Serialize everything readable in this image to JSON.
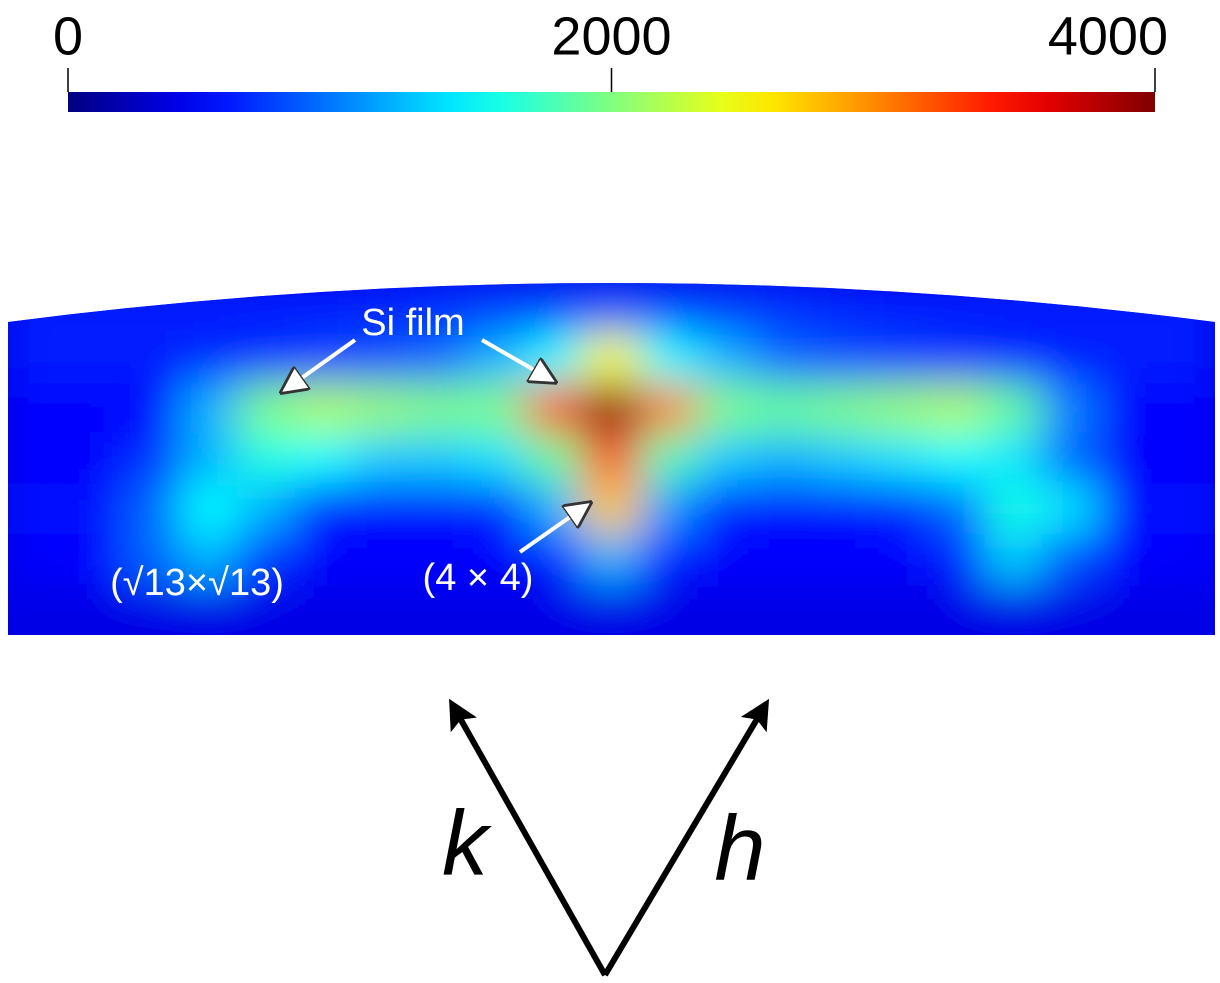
{
  "chart_data": {
    "type": "heatmap",
    "colorbar": {
      "lim": [
        0,
        4000
      ],
      "ticks": [
        0,
        2000,
        4000
      ]
    },
    "z": [
      [
        600,
        600,
        600,
        600,
        600,
        600,
        650,
        700,
        750,
        800,
        850,
        800,
        750,
        700,
        650,
        600,
        600,
        600,
        600,
        600,
        600
      ],
      [
        600,
        600,
        600,
        650,
        700,
        750,
        800,
        900,
        1200,
        1500,
        2500,
        1500,
        1200,
        900,
        800,
        750,
        700,
        650,
        600,
        600,
        600
      ],
      [
        500,
        500,
        500,
        1200,
        2000,
        2200,
        2100,
        2000,
        2000,
        3200,
        4000,
        3000,
        2000,
        1900,
        2000,
        2100,
        2200,
        1900,
        1000,
        500,
        500
      ],
      [
        500,
        500,
        700,
        1200,
        1600,
        1500,
        1300,
        1300,
        1400,
        1900,
        3200,
        1800,
        1300,
        1200,
        1300,
        1400,
        1500,
        1400,
        900,
        500,
        500
      ],
      [
        550,
        550,
        900,
        1500,
        1200,
        600,
        550,
        550,
        600,
        1200,
        2700,
        1100,
        600,
        550,
        550,
        600,
        900,
        1600,
        1400,
        550,
        550
      ],
      [
        500,
        500,
        900,
        1200,
        700,
        500,
        500,
        500,
        500,
        600,
        1200,
        600,
        500,
        500,
        500,
        500,
        600,
        1300,
        800,
        500,
        500
      ],
      [
        400,
        400,
        400,
        400,
        400,
        400,
        400,
        400,
        400,
        400,
        400,
        400,
        400,
        400,
        400,
        400,
        400,
        400,
        400,
        400,
        400
      ]
    ],
    "annotations": [
      "Si film",
      "(4 × 4)",
      "(√13×√13)"
    ],
    "vectors": [
      "k",
      "h"
    ]
  }
}
